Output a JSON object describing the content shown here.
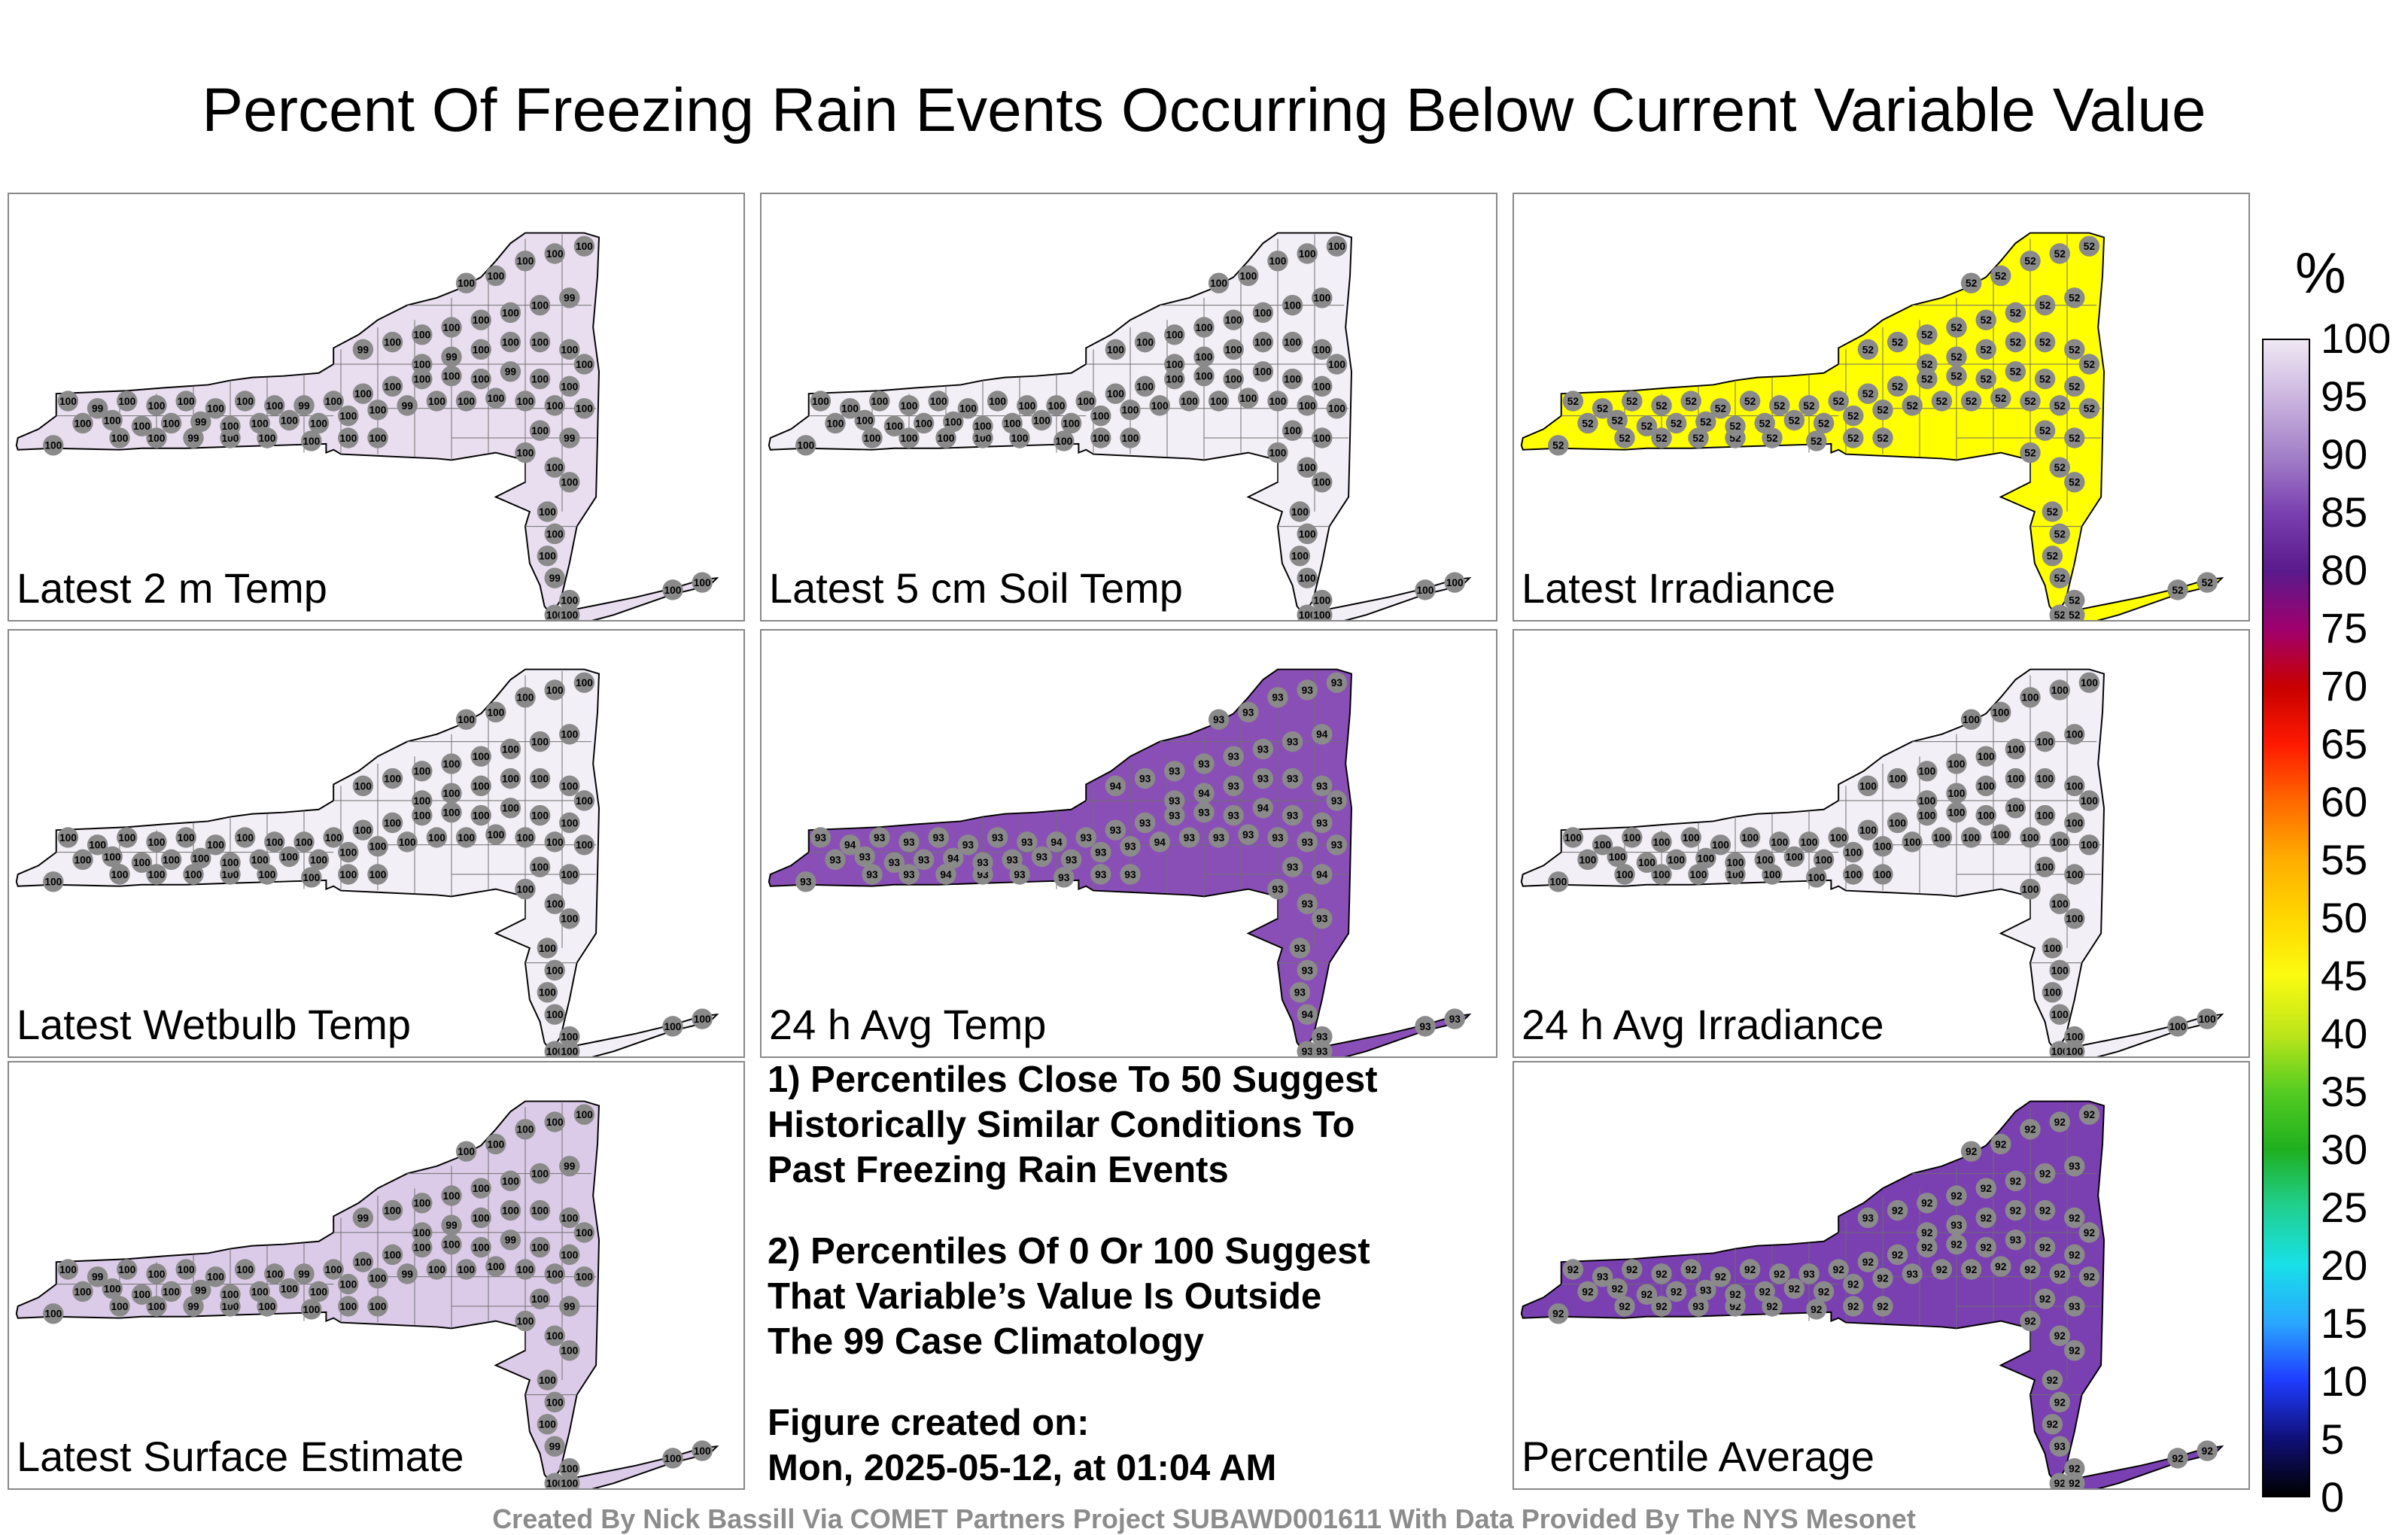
{
  "title": "Percent Of Freezing Rain Events Occurring Below Current Variable Value",
  "panels": [
    {
      "label": "Latest 2 m Temp",
      "fill": "#e9def0",
      "value": "100",
      "alt_value": "99"
    },
    {
      "label": "Latest 5 cm Soil Temp",
      "fill": "#f3eff6",
      "value": "100",
      "alt_value": "100"
    },
    {
      "label": "Latest Irradiance",
      "fill": "#ffff00",
      "value": "52",
      "alt_value": "52"
    },
    {
      "label": "Latest Wetbulb Temp",
      "fill": "#f3eff6",
      "value": "100",
      "alt_value": "100"
    },
    {
      "label": "24 h Avg Temp",
      "fill": "#8a4fb6",
      "value": "93",
      "alt_value": "94"
    },
    {
      "label": "24 h Avg Irradiance",
      "fill": "#f3eff6",
      "value": "100",
      "alt_value": "100"
    },
    {
      "label": "Latest Surface Estimate",
      "fill": "#dccbe8",
      "value": "100",
      "alt_value": "99"
    },
    {
      "label": "Percentile Average",
      "fill": "#7a3fb0",
      "value": "92",
      "alt_value": "93"
    }
  ],
  "notes": {
    "note1": [
      "1) Percentiles Close To 50 Suggest",
      "Historically Similar Conditions To",
      "Past Freezing Rain Events"
    ],
    "note2": [
      "2) Percentiles Of 0 Or 100 Suggest",
      "That Variable’s Value Is Outside",
      "The 99 Case Climatology"
    ],
    "created": [
      "Figure created on:",
      "Mon, 2025-05-12, at 01:04 AM"
    ]
  },
  "colorbar": {
    "unit": "%",
    "ticks": [
      "100",
      "95",
      "90",
      "85",
      "80",
      "75",
      "70",
      "65",
      "60",
      "55",
      "50",
      "45",
      "40",
      "35",
      "30",
      "25",
      "20",
      "15",
      "10",
      "5",
      "0"
    ],
    "colors": [
      "#000000",
      "#10107a",
      "#1f3dff",
      "#2aa7ff",
      "#18e0e8",
      "#20d090",
      "#1fb01f",
      "#55cc22",
      "#bde61a",
      "#fbfb10",
      "#ffd700",
      "#ffae00",
      "#ff6a00",
      "#ff1a00",
      "#c80000",
      "#a0006e",
      "#5a1a8c",
      "#7a3fb0",
      "#a380c8",
      "#cbb5df",
      "#efe8f4"
    ]
  },
  "credit": "Created By Nick Bassill Via COMET Partners Project SUBAWD001611 With Data Provided By The NYS Mesonet"
}
